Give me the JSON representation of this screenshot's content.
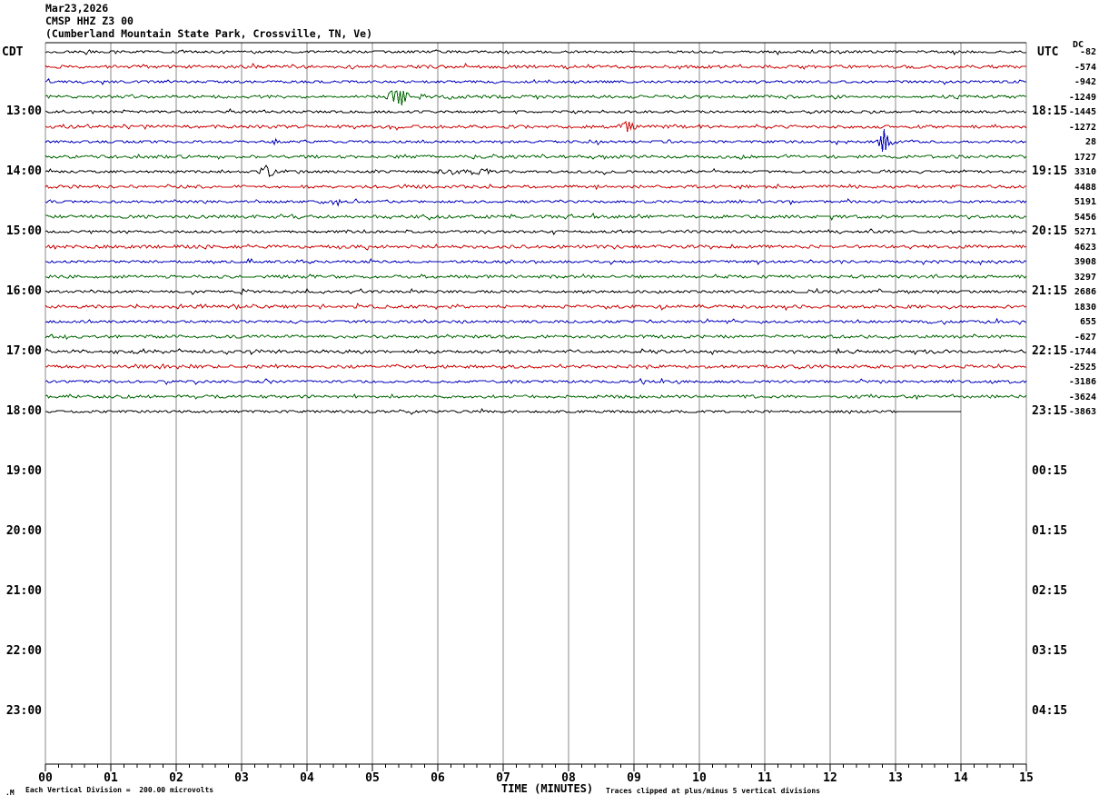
{
  "title": {
    "date": "Mar23,2026",
    "station": "CMSP HHZ Z3 00",
    "location": "(Cumberland Mountain State Park, Crossville, TN, Ve)"
  },
  "axes": {
    "left_tz_label": "CDT",
    "right_tz_label": "UTC",
    "dc_header": "DC",
    "x_title": "TIME (MINUTES)",
    "footnote_left": "Each Vertical Division =  200.00 microvolts",
    "footnote_right": "Traces clipped at plus/minus 5 vertical divisions",
    "watermark": ".M",
    "x_ticks": [
      "00",
      "01",
      "02",
      "03",
      "04",
      "05",
      "06",
      "07",
      "08",
      "09",
      "10",
      "11",
      "12",
      "13",
      "14",
      "15"
    ],
    "left_times": [
      {
        "row": 4,
        "label": "13:00"
      },
      {
        "row": 8,
        "label": "14:00"
      },
      {
        "row": 12,
        "label": "15:00"
      },
      {
        "row": 16,
        "label": "16:00"
      },
      {
        "row": 20,
        "label": "17:00"
      },
      {
        "row": 24,
        "label": "18:00"
      },
      {
        "row": 28,
        "label": "19:00"
      },
      {
        "row": 32,
        "label": "20:00"
      },
      {
        "row": 36,
        "label": "21:00"
      },
      {
        "row": 40,
        "label": "22:00"
      },
      {
        "row": 44,
        "label": "23:00"
      }
    ],
    "right_times": [
      {
        "row": 4,
        "label": "18:15"
      },
      {
        "row": 8,
        "label": "19:15"
      },
      {
        "row": 12,
        "label": "20:15"
      },
      {
        "row": 16,
        "label": "21:15"
      },
      {
        "row": 20,
        "label": "22:15"
      },
      {
        "row": 24,
        "label": "23:15"
      },
      {
        "row": 28,
        "label": "00:15"
      },
      {
        "row": 32,
        "label": "01:15"
      },
      {
        "row": 36,
        "label": "02:15"
      },
      {
        "row": 40,
        "label": "03:15"
      },
      {
        "row": 44,
        "label": "04:15"
      }
    ]
  },
  "colors": {
    "black": "#000000",
    "red": "#cc0000",
    "blue": "#0000bb",
    "green": "#006600",
    "grid": "#8a8a8a",
    "border": "#000000"
  },
  "chart_data": {
    "type": "line",
    "subtype": "helicorder-seismogram",
    "title": "CMSP HHZ Z3 00 Mar23,2026",
    "xlabel": "TIME (MINUTES)",
    "x_range": [
      0,
      15
    ],
    "major_tick_minutes": 1,
    "minor_ticks_per_major": 5,
    "row_duration_minutes": 15,
    "vertical_division_microvolts": 200.0,
    "clip_divisions": 5,
    "rows": [
      {
        "start_cdt": "12:00",
        "color": "black",
        "dc": -82,
        "noise": 1.5,
        "events": []
      },
      {
        "start_cdt": "12:15",
        "color": "red",
        "dc": -574,
        "noise": 1.5,
        "events": []
      },
      {
        "start_cdt": "12:30",
        "color": "blue",
        "dc": -942,
        "noise": 1.4,
        "events": []
      },
      {
        "start_cdt": "12:45",
        "color": "green",
        "dc": -1249,
        "noise": 1.4,
        "events": [
          {
            "type": "burst",
            "minute": 5.4,
            "amp": 11,
            "span": 0.1
          },
          {
            "type": "band",
            "from": 5.45,
            "to": 6.4,
            "amp": 2.2
          }
        ]
      },
      {
        "start_cdt": "13:00",
        "color": "black",
        "dc": -1445,
        "noise": 1.4,
        "events": []
      },
      {
        "start_cdt": "13:15",
        "color": "red",
        "dc": -1272,
        "noise": 1.5,
        "events": [
          {
            "type": "burst",
            "minute": 8.9,
            "amp": 5.5,
            "span": 0.09
          }
        ]
      },
      {
        "start_cdt": "13:30",
        "color": "blue",
        "dc": 28,
        "noise": 1.4,
        "events": [
          {
            "type": "spike",
            "minute": 12.82,
            "amp": 13,
            "span": 0.1
          },
          {
            "type": "band",
            "from": 12.85,
            "to": 13.25,
            "amp": 1.8
          }
        ]
      },
      {
        "start_cdt": "13:45",
        "color": "green",
        "dc": 1727,
        "noise": 1.4,
        "events": []
      },
      {
        "start_cdt": "14:00",
        "color": "black",
        "dc": 3310,
        "noise": 1.4,
        "events": [
          {
            "type": "burst",
            "minute": 3.4,
            "amp": 6.5,
            "span": 0.07
          },
          {
            "type": "band",
            "from": 6.0,
            "to": 6.85,
            "amp": 2.2
          }
        ]
      },
      {
        "start_cdt": "14:15",
        "color": "red",
        "dc": 4488,
        "noise": 1.4,
        "events": []
      },
      {
        "start_cdt": "14:30",
        "color": "blue",
        "dc": 5191,
        "noise": 1.4,
        "events": [
          {
            "type": "band",
            "from": 4.2,
            "to": 4.55,
            "amp": 2.5
          }
        ]
      },
      {
        "start_cdt": "14:45",
        "color": "green",
        "dc": 5456,
        "noise": 1.5,
        "events": []
      },
      {
        "start_cdt": "15:00",
        "color": "black",
        "dc": 5271,
        "noise": 1.3,
        "events": []
      },
      {
        "start_cdt": "15:15",
        "color": "red",
        "dc": 4623,
        "noise": 1.5,
        "events": []
      },
      {
        "start_cdt": "15:30",
        "color": "blue",
        "dc": 3908,
        "noise": 1.4,
        "events": []
      },
      {
        "start_cdt": "15:45",
        "color": "green",
        "dc": 3297,
        "noise": 1.4,
        "events": []
      },
      {
        "start_cdt": "16:00",
        "color": "black",
        "dc": 2686,
        "noise": 1.4,
        "events": []
      },
      {
        "start_cdt": "16:15",
        "color": "red",
        "dc": 1830,
        "noise": 1.5,
        "events": []
      },
      {
        "start_cdt": "16:30",
        "color": "blue",
        "dc": 655,
        "noise": 1.4,
        "events": []
      },
      {
        "start_cdt": "16:45",
        "color": "green",
        "dc": -627,
        "noise": 1.4,
        "events": []
      },
      {
        "start_cdt": "17:00",
        "color": "black",
        "dc": -1744,
        "noise": 1.6,
        "events": []
      },
      {
        "start_cdt": "17:15",
        "color": "red",
        "dc": -2525,
        "noise": 1.5,
        "events": []
      },
      {
        "start_cdt": "17:30",
        "color": "blue",
        "dc": -3186,
        "noise": 1.4,
        "events": []
      },
      {
        "start_cdt": "17:45",
        "color": "green",
        "dc": -3624,
        "noise": 1.4,
        "events": []
      },
      {
        "start_cdt": "18:00",
        "color": "black",
        "dc": -3863,
        "noise": 1.4,
        "events": [],
        "noise_until_minute": 13.0,
        "flat_until_minute": 14.0
      }
    ]
  }
}
